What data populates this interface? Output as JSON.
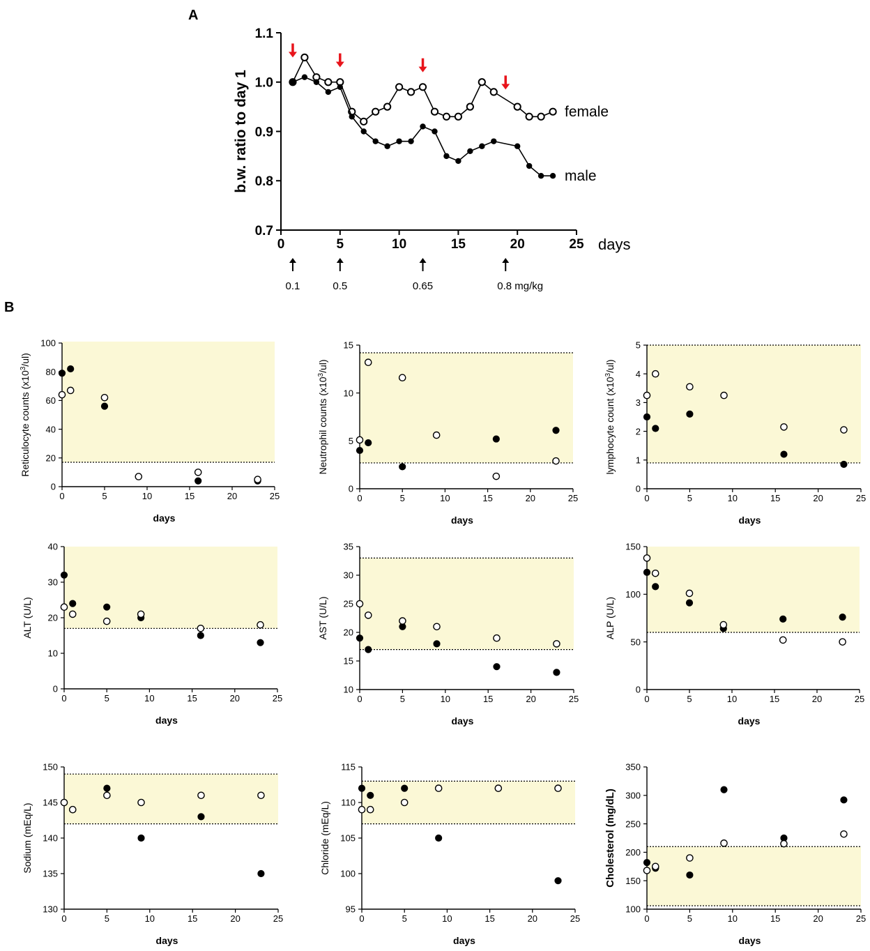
{
  "figure": {
    "panel_a_label": "A",
    "panel_b_label": "B",
    "colors": {
      "band": "#fbf8d6",
      "dose_arrow": "#e8141b",
      "ink": "#000000",
      "open_fill": "#ffffff"
    }
  },
  "chart_data": [
    {
      "id": "bw",
      "type": "line",
      "title": "",
      "ylabel": "b.w. ratio to day 1",
      "xlabel": "days",
      "xlim": [
        0,
        25
      ],
      "ylim": [
        0.7,
        1.1
      ],
      "xticks": [
        0,
        5,
        10,
        15,
        20,
        25
      ],
      "yticks": [
        0.7,
        0.8,
        0.9,
        1.0,
        1.1
      ],
      "ytick_labels": [
        "0.7",
        "0.8",
        "0.9",
        "1.0",
        "1.1"
      ],
      "series": [
        {
          "name": "female",
          "marker": "open",
          "label": "female",
          "label_at": [
            24,
            0.94
          ],
          "x": [
            1,
            2,
            3,
            4,
            5,
            6,
            7,
            8,
            9,
            10,
            11,
            12,
            13,
            14,
            15,
            16,
            17,
            18,
            20,
            21,
            22,
            23
          ],
          "y": [
            1.0,
            1.05,
            1.01,
            1.0,
            1.0,
            0.94,
            0.92,
            0.94,
            0.95,
            0.99,
            0.98,
            0.99,
            0.94,
            0.93,
            0.93,
            0.95,
            1.0,
            0.98,
            0.95,
            0.93,
            0.93,
            0.94
          ]
        },
        {
          "name": "male",
          "marker": "filled",
          "label": "male",
          "label_at": [
            24,
            0.81
          ],
          "x": [
            1,
            2,
            3,
            4,
            5,
            6,
            7,
            8,
            9,
            10,
            11,
            12,
            13,
            14,
            15,
            16,
            17,
            18,
            20,
            21,
            22,
            23
          ],
          "y": [
            1.0,
            1.01,
            1.0,
            0.98,
            0.99,
            0.93,
            0.9,
            0.88,
            0.87,
            0.88,
            0.88,
            0.91,
            0.9,
            0.85,
            0.84,
            0.86,
            0.87,
            0.88,
            0.87,
            0.83,
            0.81,
            0.81
          ]
        }
      ],
      "dose_arrows_red": [
        {
          "x": 1,
          "y": 1.05
        },
        {
          "x": 5,
          "y": 1.03
        },
        {
          "x": 12,
          "y": 1.02
        },
        {
          "x": 19,
          "y": 0.985
        }
      ],
      "dose_annotations": [
        {
          "x": 1,
          "label": "0.1"
        },
        {
          "x": 5,
          "label": "0.5"
        },
        {
          "x": 12,
          "label": "0.65"
        },
        {
          "x": 19,
          "label": "0.8 mg/kg"
        }
      ]
    },
    {
      "id": "reticulocyte",
      "type": "scatter",
      "ylabel_main": "Reticulocyte counts (x10",
      "ylabel_sup": "3",
      "ylabel_tail": "/ul)",
      "xlabel": "days",
      "xlim": [
        0,
        25
      ],
      "ylim": [
        0,
        100
      ],
      "xticks": [
        0,
        5,
        10,
        15,
        20,
        25
      ],
      "yticks": [
        0,
        20,
        40,
        60,
        80,
        100
      ],
      "ytick_labels": [
        "0",
        "20",
        "40",
        "60",
        "80",
        "100"
      ],
      "normal_range": [
        17,
        101
      ],
      "band_dashed": [
        "low"
      ],
      "series": [
        {
          "name": "male",
          "marker": "filled",
          "x": [
            0,
            1,
            5,
            16,
            23
          ],
          "y": [
            79,
            82,
            56,
            4,
            4
          ]
        },
        {
          "name": "female",
          "marker": "open",
          "x": [
            0,
            1,
            5,
            9,
            16,
            23
          ],
          "y": [
            64,
            67,
            62,
            7,
            10,
            5
          ]
        }
      ]
    },
    {
      "id": "neutrophil",
      "type": "scatter",
      "ylabel_main": "Neutrophil counts (x10",
      "ylabel_sup": "3",
      "ylabel_tail": "/ul)",
      "xlabel": "days",
      "xlim": [
        0,
        25
      ],
      "ylim": [
        0,
        15
      ],
      "xticks": [
        0,
        5,
        10,
        15,
        20,
        25
      ],
      "yticks": [
        0,
        5,
        10,
        15
      ],
      "ytick_labels": [
        "0",
        "5",
        "10",
        "15"
      ],
      "normal_range": [
        2.7,
        14.2
      ],
      "band_dashed": [
        "low",
        "high"
      ],
      "series": [
        {
          "name": "male",
          "marker": "filled",
          "x": [
            0,
            1,
            5,
            16,
            23
          ],
          "y": [
            4.0,
            4.8,
            2.3,
            5.2,
            6.1
          ]
        },
        {
          "name": "female",
          "marker": "open",
          "x": [
            0,
            1,
            5,
            9,
            16,
            23
          ],
          "y": [
            5.1,
            13.2,
            11.6,
            5.6,
            1.3,
            2.9
          ]
        }
      ]
    },
    {
      "id": "lymphocyte",
      "type": "scatter",
      "ylabel_main": "lymphocyte count (x10",
      "ylabel_sup": "3",
      "ylabel_tail": "/ul)",
      "xlabel": "days",
      "xlim": [
        0,
        25
      ],
      "ylim": [
        0,
        5
      ],
      "xticks": [
        0,
        5,
        10,
        15,
        20,
        25
      ],
      "yticks": [
        0,
        1,
        2,
        3,
        4,
        5
      ],
      "ytick_labels": [
        "0",
        "1",
        "2",
        "3",
        "4",
        "5"
      ],
      "normal_range": [
        0.9,
        5.0
      ],
      "band_dashed": [
        "low",
        "high"
      ],
      "series": [
        {
          "name": "male",
          "marker": "filled",
          "x": [
            0,
            1,
            5,
            16,
            23
          ],
          "y": [
            2.5,
            2.1,
            2.6,
            1.2,
            0.85
          ]
        },
        {
          "name": "female",
          "marker": "open",
          "x": [
            0,
            1,
            5,
            9,
            16,
            23
          ],
          "y": [
            3.25,
            4.0,
            3.55,
            3.25,
            2.15,
            2.05
          ]
        }
      ]
    },
    {
      "id": "alt",
      "type": "scatter",
      "ylabel": "ALT (U/L)",
      "xlabel": "days",
      "xlim": [
        0,
        25
      ],
      "ylim": [
        0,
        40
      ],
      "xticks": [
        0,
        5,
        10,
        15,
        20,
        25
      ],
      "yticks": [
        0,
        10,
        20,
        30,
        40
      ],
      "ytick_labels": [
        "0",
        "10",
        "20",
        "30",
        "40"
      ],
      "normal_range": [
        17,
        40
      ],
      "band_dashed": [
        "low"
      ],
      "series": [
        {
          "name": "male",
          "marker": "filled",
          "x": [
            0,
            1,
            5,
            9,
            16,
            23
          ],
          "y": [
            32,
            24,
            23,
            20,
            15,
            13
          ]
        },
        {
          "name": "female",
          "marker": "open",
          "x": [
            0,
            1,
            5,
            9,
            16,
            23
          ],
          "y": [
            23,
            21,
            19,
            21,
            17,
            18
          ]
        }
      ]
    },
    {
      "id": "ast",
      "type": "scatter",
      "ylabel": "AST (U/L)",
      "xlabel": "days",
      "xlim": [
        0,
        25
      ],
      "ylim": [
        10,
        35
      ],
      "xticks": [
        0,
        5,
        10,
        15,
        20,
        25
      ],
      "yticks": [
        10,
        15,
        20,
        25,
        30,
        35
      ],
      "ytick_labels": [
        "10",
        "15",
        "20",
        "25",
        "30",
        "35"
      ],
      "normal_range": [
        17,
        33
      ],
      "band_dashed": [
        "low",
        "high"
      ],
      "series": [
        {
          "name": "male",
          "marker": "filled",
          "x": [
            0,
            1,
            5,
            9,
            16,
            23
          ],
          "y": [
            19,
            17,
            21,
            18,
            14,
            13
          ]
        },
        {
          "name": "female",
          "marker": "open",
          "x": [
            0,
            1,
            5,
            9,
            16,
            23
          ],
          "y": [
            25,
            23,
            22,
            21,
            19,
            18
          ]
        }
      ]
    },
    {
      "id": "alp",
      "type": "scatter",
      "ylabel": "ALP (U/L)",
      "xlabel": "days",
      "xlim": [
        0,
        25
      ],
      "ylim": [
        0,
        150
      ],
      "xticks": [
        0,
        5,
        10,
        15,
        20,
        25
      ],
      "yticks": [
        0,
        50,
        100,
        150
      ],
      "ytick_labels": [
        "0",
        "50",
        "100",
        "150"
      ],
      "normal_range": [
        60,
        150
      ],
      "band_dashed": [
        "low"
      ],
      "series": [
        {
          "name": "male",
          "marker": "filled",
          "x": [
            0,
            1,
            5,
            9,
            16,
            23
          ],
          "y": [
            123,
            108,
            91,
            64,
            74,
            76
          ]
        },
        {
          "name": "female",
          "marker": "open",
          "x": [
            0,
            1,
            5,
            9,
            16,
            23
          ],
          "y": [
            138,
            122,
            101,
            68,
            52,
            50
          ]
        }
      ]
    },
    {
      "id": "sodium",
      "type": "scatter",
      "ylabel": "Sodium (mEq/L)",
      "xlabel": "days",
      "xlim": [
        0,
        25
      ],
      "ylim": [
        130,
        150
      ],
      "xticks": [
        0,
        5,
        10,
        15,
        20,
        25
      ],
      "yticks": [
        130,
        135,
        140,
        145,
        150
      ],
      "ytick_labels": [
        "130",
        "135",
        "140",
        "145",
        "150"
      ],
      "normal_range": [
        142,
        149
      ],
      "band_dashed": [
        "low",
        "high"
      ],
      "series": [
        {
          "name": "male",
          "marker": "filled",
          "x": [
            0,
            1,
            5,
            9,
            16,
            23
          ],
          "y": [
            145,
            144,
            147,
            140,
            143,
            135
          ]
        },
        {
          "name": "female",
          "marker": "open",
          "x": [
            0,
            1,
            5,
            9,
            16,
            23
          ],
          "y": [
            145,
            144,
            146,
            145,
            146,
            146
          ]
        }
      ]
    },
    {
      "id": "chloride",
      "type": "scatter",
      "ylabel": "Chloride (mEq/L)",
      "xlabel": "days",
      "xlim": [
        0,
        25
      ],
      "ylim": [
        95,
        115
      ],
      "xticks": [
        0,
        5,
        10,
        15,
        20,
        25
      ],
      "yticks": [
        95,
        100,
        105,
        110,
        115
      ],
      "ytick_labels": [
        "95",
        "100",
        "105",
        "110",
        "115"
      ],
      "normal_range": [
        107,
        113
      ],
      "band_dashed": [
        "low",
        "high"
      ],
      "series": [
        {
          "name": "male",
          "marker": "filled",
          "x": [
            0,
            1,
            5,
            9,
            16,
            23
          ],
          "y": [
            112,
            111,
            112,
            105,
            112,
            99
          ]
        },
        {
          "name": "female",
          "marker": "open",
          "x": [
            0,
            1,
            5,
            9,
            16,
            23
          ],
          "y": [
            109,
            109,
            110,
            112,
            112,
            112
          ]
        }
      ]
    },
    {
      "id": "cholesterol",
      "type": "scatter",
      "ylabel": "Cholesterol (mg/dL)",
      "xlabel": "days",
      "xlim": [
        0,
        25
      ],
      "ylim": [
        100,
        350
      ],
      "xticks": [
        0,
        5,
        10,
        15,
        20,
        25
      ],
      "yticks": [
        100,
        150,
        200,
        250,
        300,
        350
      ],
      "ytick_labels": [
        "100",
        "150",
        "200",
        "250",
        "300",
        "350"
      ],
      "normal_range": [
        106,
        210
      ],
      "band_dashed": [
        "low",
        "high"
      ],
      "series": [
        {
          "name": "male",
          "marker": "filled",
          "x": [
            0,
            1,
            5,
            9,
            16,
            23
          ],
          "y": [
            182,
            172,
            160,
            310,
            225,
            292
          ]
        },
        {
          "name": "female",
          "marker": "open",
          "x": [
            0,
            1,
            5,
            9,
            16,
            23
          ],
          "y": [
            168,
            175,
            190,
            216,
            215,
            232
          ]
        }
      ]
    }
  ]
}
